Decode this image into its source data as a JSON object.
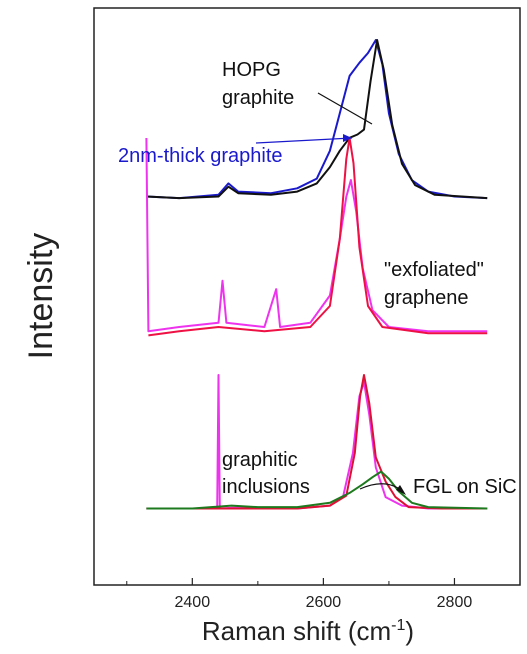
{
  "chart_data": {
    "type": "line",
    "xlabel": "Raman shift (cm",
    "xlabel_sup": "-1",
    "xlabel_close": ")",
    "ylabel": "Intensity",
    "xlim": [
      2250,
      2900
    ],
    "xticks": [
      2400,
      2600,
      2800
    ],
    "xtick_labels": [
      "2400",
      "2600",
      "2800"
    ],
    "grid": false,
    "panels": [
      {
        "name": "top",
        "series": [
          {
            "color": "#1a1acc",
            "points": [
              [
                2330,
                0.04
              ],
              [
                2380,
                0.03
              ],
              [
                2440,
                0.05
              ],
              [
                2455,
                0.12
              ],
              [
                2470,
                0.07
              ],
              [
                2520,
                0.06
              ],
              [
                2560,
                0.09
              ],
              [
                2590,
                0.15
              ],
              [
                2610,
                0.32
              ],
              [
                2625,
                0.55
              ],
              [
                2640,
                0.78
              ],
              [
                2655,
                0.86
              ],
              [
                2668,
                0.92
              ],
              [
                2680,
                1.0
              ],
              [
                2690,
                0.85
              ],
              [
                2700,
                0.55
              ],
              [
                2715,
                0.3
              ],
              [
                2735,
                0.14
              ],
              [
                2760,
                0.07
              ],
              [
                2800,
                0.04
              ],
              [
                2850,
                0.03
              ]
            ]
          },
          {
            "color": "#111111",
            "points": [
              [
                2330,
                0.04
              ],
              [
                2380,
                0.03
              ],
              [
                2440,
                0.04
              ],
              [
                2455,
                0.1
              ],
              [
                2470,
                0.06
              ],
              [
                2520,
                0.05
              ],
              [
                2560,
                0.07
              ],
              [
                2590,
                0.12
              ],
              [
                2610,
                0.22
              ],
              [
                2625,
                0.32
              ],
              [
                2640,
                0.4
              ],
              [
                2652,
                0.42
              ],
              [
                2662,
                0.45
              ],
              [
                2672,
                0.75
              ],
              [
                2682,
                1.0
              ],
              [
                2692,
                0.82
              ],
              [
                2705,
                0.48
              ],
              [
                2720,
                0.24
              ],
              [
                2740,
                0.11
              ],
              [
                2770,
                0.05
              ],
              [
                2850,
                0.03
              ]
            ]
          }
        ]
      },
      {
        "name": "middle",
        "series": [
          {
            "color": "#ee33ee",
            "points": [
              [
                2330,
                1.0
              ],
              [
                2333,
                0.08
              ],
              [
                2380,
                0.1
              ],
              [
                2440,
                0.12
              ],
              [
                2446,
                0.32
              ],
              [
                2452,
                0.12
              ],
              [
                2510,
                0.1
              ],
              [
                2528,
                0.28
              ],
              [
                2534,
                0.1
              ],
              [
                2580,
                0.12
              ],
              [
                2610,
                0.25
              ],
              [
                2625,
                0.52
              ],
              [
                2635,
                0.72
              ],
              [
                2642,
                0.8
              ],
              [
                2650,
                0.65
              ],
              [
                2660,
                0.38
              ],
              [
                2675,
                0.18
              ],
              [
                2700,
                0.1
              ],
              [
                2760,
                0.08
              ],
              [
                2850,
                0.08
              ]
            ]
          },
          {
            "color": "#ee1144",
            "points": [
              [
                2333,
                0.06
              ],
              [
                2380,
                0.08
              ],
              [
                2440,
                0.1
              ],
              [
                2510,
                0.08
              ],
              [
                2580,
                0.1
              ],
              [
                2610,
                0.2
              ],
              [
                2625,
                0.52
              ],
              [
                2635,
                0.9
              ],
              [
                2640,
                1.0
              ],
              [
                2646,
                0.88
              ],
              [
                2655,
                0.48
              ],
              [
                2668,
                0.2
              ],
              [
                2690,
                0.1
              ],
              [
                2760,
                0.07
              ],
              [
                2850,
                0.07
              ]
            ]
          }
        ]
      },
      {
        "name": "bottom",
        "series": [
          {
            "color": "#ee33ee",
            "points": [
              [
                2330,
                0.06
              ],
              [
                2400,
                0.06
              ],
              [
                2438,
                0.06
              ],
              [
                2440,
                1.0
              ],
              [
                2442,
                0.06
              ],
              [
                2480,
                0.07
              ],
              [
                2560,
                0.06
              ],
              [
                2610,
                0.08
              ],
              [
                2630,
                0.14
              ],
              [
                2645,
                0.45
              ],
              [
                2655,
                0.85
              ],
              [
                2662,
                0.95
              ],
              [
                2670,
                0.72
              ],
              [
                2680,
                0.35
              ],
              [
                2695,
                0.14
              ],
              [
                2720,
                0.08
              ],
              [
                2760,
                0.06
              ],
              [
                2850,
                0.06
              ]
            ]
          },
          {
            "color": "#dd1133",
            "points": [
              [
                2330,
                0.06
              ],
              [
                2480,
                0.06
              ],
              [
                2560,
                0.06
              ],
              [
                2610,
                0.08
              ],
              [
                2635,
                0.15
              ],
              [
                2648,
                0.45
              ],
              [
                2656,
                0.85
              ],
              [
                2662,
                1.0
              ],
              [
                2670,
                0.8
              ],
              [
                2680,
                0.42
              ],
              [
                2695,
                0.25
              ],
              [
                2710,
                0.14
              ],
              [
                2730,
                0.07
              ],
              [
                2780,
                0.06
              ],
              [
                2850,
                0.06
              ]
            ]
          },
          {
            "color": "#1e7a1e",
            "points": [
              [
                2330,
                0.06
              ],
              [
                2400,
                0.06
              ],
              [
                2460,
                0.08
              ],
              [
                2500,
                0.07
              ],
              [
                2560,
                0.07
              ],
              [
                2610,
                0.1
              ],
              [
                2640,
                0.17
              ],
              [
                2660,
                0.23
              ],
              [
                2675,
                0.28
              ],
              [
                2688,
                0.32
              ],
              [
                2700,
                0.27
              ],
              [
                2715,
                0.18
              ],
              [
                2735,
                0.1
              ],
              [
                2760,
                0.07
              ],
              [
                2850,
                0.06
              ]
            ]
          }
        ]
      }
    ],
    "annotations": {
      "hopg_line1": "HOPG",
      "hopg_line2": "graphite",
      "thin": "2nm-thick graphite",
      "exf_line1": "\"exfoliated\"",
      "exf_line2": "graphene",
      "incl_line1": "graphitic",
      "incl_line2": "inclusions",
      "fgl": "FGL on SiC"
    },
    "colors": {
      "blue": "#1a1acc",
      "black": "#111111",
      "magenta": "#ee33ee",
      "red": "#ee1144",
      "green": "#1e7a1e"
    }
  }
}
